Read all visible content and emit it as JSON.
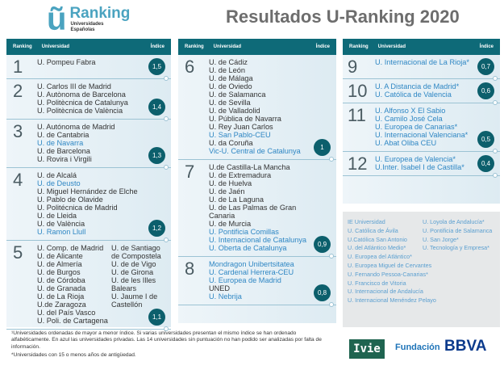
{
  "title": "Resultados U-Ranking 2020",
  "logo": {
    "mark": "ũ",
    "name": "Ranking",
    "sub1": "Universidades",
    "sub2": "Españolas"
  },
  "table_header": {
    "ranking": "Ranking",
    "universidad": "Universidad",
    "indice": "Índice"
  },
  "colors": {
    "header": "#0e6a78",
    "private": "#2f87c4",
    "badge": "#0c5f6c"
  },
  "columns": [
    [
      {
        "rank": "1",
        "index": "1,5",
        "items": [
          {
            "name": "U. Pompeu Fabra"
          }
        ]
      },
      {
        "rank": "2",
        "index": "1,4",
        "items": [
          {
            "name": "U. Carlos III de Madrid"
          },
          {
            "name": "U. Autònoma de Barcelona"
          },
          {
            "name": "U. Politècnica de Catalunya"
          },
          {
            "name": "U. Politècnica de València"
          }
        ]
      },
      {
        "rank": "3",
        "index": "1,3",
        "items": [
          {
            "name": "U. Autónoma de Madrid"
          },
          {
            "name": "U. de Cantabria"
          },
          {
            "name": "U. de Navarra",
            "private": true
          },
          {
            "name": "U. de Barcelona"
          },
          {
            "name": "U. Rovira i Virgili"
          }
        ]
      },
      {
        "rank": "4",
        "index": "1,2",
        "items": [
          {
            "name": "U. de Alcalá"
          },
          {
            "name": "U. de Deusto",
            "private": true
          },
          {
            "name": "U. Miguel Hernández de Elche"
          },
          {
            "name": "U. Pablo de Olavide"
          },
          {
            "name": "U. Politécnica de Madrid"
          },
          {
            "name": "U. de Lleida"
          },
          {
            "name": "U. de València"
          },
          {
            "name": "U. Ramon Llull",
            "private": true
          }
        ]
      },
      {
        "rank": "5",
        "index": "1,1",
        "cols": [
          [
            {
              "name": "U. Comp. de Madrid"
            },
            {
              "name": "U. de Alicante"
            },
            {
              "name": "U. de Almería"
            },
            {
              "name": "U. de Burgos"
            },
            {
              "name": "U. de Córdoba"
            },
            {
              "name": "U. de Granada"
            },
            {
              "name": "U. de La Rioja"
            },
            {
              "name": "U.de Zaragoza"
            },
            {
              "name": "U. del País Vasco"
            },
            {
              "name": "U. Poli. de Cartagena"
            }
          ],
          [
            {
              "name": "U. de Santiago"
            },
            {
              "name": "de Compostela"
            },
            {
              "name": "U. de de Vigo"
            },
            {
              "name": "U. de Girona"
            },
            {
              "name": "U. de les Illes"
            },
            {
              "name": "Balears"
            },
            {
              "name": "U. Jaume I de"
            },
            {
              "name": "Castellón"
            }
          ]
        ]
      }
    ],
    [
      {
        "rank": "6",
        "index": "1",
        "items": [
          {
            "name": "U. de Cádiz"
          },
          {
            "name": "U. de León"
          },
          {
            "name": "U. de Málaga"
          },
          {
            "name": "U. de Oviedo"
          },
          {
            "name": "U. de Salamanca"
          },
          {
            "name": "U. de Sevilla"
          },
          {
            "name": "U. de Valladolid"
          },
          {
            "name": "U. Pública de Navarra"
          },
          {
            "name": "U. Rey Juan Carlos"
          },
          {
            "name": "U. San Pablo-CEU",
            "private": true
          },
          {
            "name": "U. da Coruña"
          },
          {
            "name": "Vic-U. Central de Catalunya",
            "private": true
          }
        ]
      },
      {
        "rank": "7",
        "index": "0,9",
        "items": [
          {
            "name": "U.de Castilla-La Mancha"
          },
          {
            "name": "U. de Extremadura"
          },
          {
            "name": "U. de Huelva"
          },
          {
            "name": "U. de Jaén"
          },
          {
            "name": "U. de La Laguna"
          },
          {
            "name": "U. de Las Palmas de Gran Canaria"
          },
          {
            "name": "U. de Murcia"
          },
          {
            "name": "U. Pontificia Comillas",
            "private": true
          },
          {
            "name": "U. Internacional de Catalunya",
            "private": true
          },
          {
            "name": "U. Oberta de Catalunya",
            "private": true
          }
        ]
      },
      {
        "rank": "8",
        "index": "0,8",
        "items": [
          {
            "name": "Mondragon Unibertsitatea",
            "private": true
          },
          {
            "name": "U. Cardenal Herrera-CEU",
            "private": true
          },
          {
            "name": "U. Europea de Madrid",
            "private": true
          },
          {
            "name": "UNED"
          },
          {
            "name": "U. Nebrija",
            "private": true
          }
        ]
      }
    ],
    [
      {
        "rank": "9",
        "index": "0,7",
        "items": [
          {
            "name": "U. Internacional de La Rioja*",
            "private": true
          }
        ]
      },
      {
        "rank": "10",
        "index": "0,6",
        "items": [
          {
            "name": "U. A Distancia de Madrid*",
            "private": true
          },
          {
            "name": "U. Católica de Valencia",
            "private": true
          }
        ]
      },
      {
        "rank": "11",
        "index": "0,5",
        "items": [
          {
            "name": "U. Alfonso X El Sabio",
            "private": true
          },
          {
            "name": "U. Camilo José Cela",
            "private": true
          },
          {
            "name": "U. Europea de Canarias*",
            "private": true
          },
          {
            "name": "U. Internacional Valenciana*",
            "private": true
          },
          {
            "name": "U. Abat Oliba CEU",
            "private": true
          }
        ]
      },
      {
        "rank": "12",
        "index": "0,4",
        "items": [
          {
            "name": "U. Europea de Valencia*",
            "private": true
          },
          {
            "name": "U.Inter. Isabel I de Castilla*",
            "private": true
          }
        ]
      }
    ]
  ],
  "unranked": {
    "left": [
      "IE Universidad",
      "U. Católica de Ávila",
      "U.Católica San Antonio",
      "U. del Atlántico Medio*",
      "U. Europea del Atlántico*",
      "U. Europea Miguel de Cervantes",
      "U. Fernando Pessoa-Canarias*",
      "U. Francisco de Vitoria",
      "U. Internacional de Andalucía",
      "U. Internacional Menéndez Pelayo"
    ],
    "right": [
      "U. Loyola de Andalucía*",
      "U. Pontificia de Salamanca",
      "U. San Jorge*",
      "U. Tecnología y Empresa*"
    ]
  },
  "footnotes": [
    "¹Universidades ordenadas de mayor a menor índice. Si varias universidades presentan el mismo índice se han ordenado alfabéticamente. En azul las universidades privadas. Las 14 universidades sin puntuación no han podido ser analizadas por falta de información.",
    "*Universidades con 15 o menos años de antigüedad."
  ],
  "sponsors": {
    "ivie": "Ivie",
    "fundacion": "Fundación",
    "bbva": "BBVA"
  }
}
